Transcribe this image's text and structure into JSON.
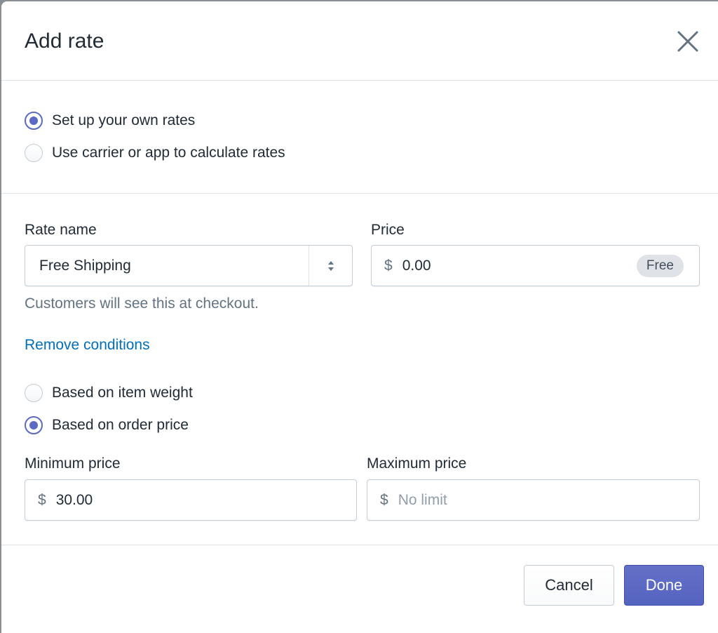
{
  "header": {
    "title": "Add rate",
    "close_icon": "close-icon"
  },
  "rate_type": {
    "options": [
      {
        "label": "Set up your own rates",
        "selected": true
      },
      {
        "label": "Use carrier or app to calculate rates",
        "selected": false
      }
    ]
  },
  "rate_name": {
    "label": "Rate name",
    "value": "Free Shipping",
    "help": "Customers will see this at checkout."
  },
  "price": {
    "label": "Price",
    "currency": "$",
    "value": "0.00",
    "badge": "Free"
  },
  "conditions": {
    "remove_link": "Remove conditions",
    "options": [
      {
        "label": "Based on item weight",
        "selected": false
      },
      {
        "label": "Based on order price",
        "selected": true
      }
    ]
  },
  "min_price": {
    "label": "Minimum price",
    "currency": "$",
    "value": "30.00"
  },
  "max_price": {
    "label": "Maximum price",
    "currency": "$",
    "placeholder": "No limit"
  },
  "footer": {
    "cancel": "Cancel",
    "done": "Done"
  },
  "colors": {
    "accent": "#5c6ac4",
    "link": "#006fbb"
  }
}
